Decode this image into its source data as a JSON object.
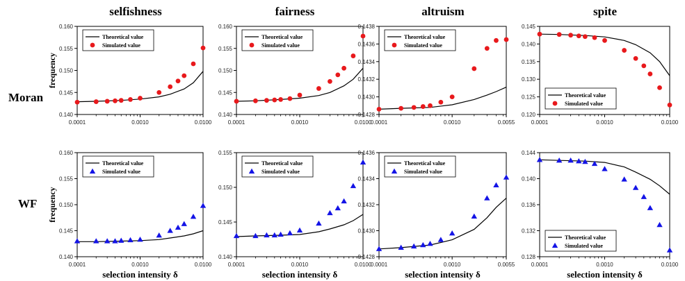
{
  "figure": {
    "column_titles": [
      "selfishness",
      "fairness",
      "altruism",
      "spite"
    ],
    "row_labels": [
      "Moran",
      "WF"
    ],
    "ylabel": "frequency",
    "xlabel": "selection intensity δ",
    "legend": {
      "theoretical": "Theoretical value",
      "simulated": "Simulated value"
    },
    "colors": {
      "moran_marker": "#e8191c",
      "wf_marker": "#1414e6",
      "line": "#000000"
    }
  },
  "chart_data": [
    {
      "type": "line",
      "row": "Moran",
      "column": "selfishness",
      "xscale": "log",
      "xlim": [
        0.0001,
        0.01
      ],
      "ylim": [
        0.14,
        0.16
      ],
      "xticks": [
        "0.0001",
        "0.0010",
        "0.0100"
      ],
      "yticks": [
        "0.140",
        "0.145",
        "0.150",
        "0.155",
        "0.160"
      ],
      "legend_position": "top-left",
      "marker": "circle",
      "series": [
        {
          "name": "Theoretical value",
          "x": [
            0.0001,
            0.0002,
            0.0005,
            0.001,
            0.002,
            0.003,
            0.005,
            0.007,
            0.01
          ],
          "y": [
            0.1429,
            0.143,
            0.1432,
            0.1435,
            0.144,
            0.1446,
            0.1458,
            0.1472,
            0.1498
          ]
        },
        {
          "name": "Simulated value",
          "x": [
            0.0001,
            0.0002,
            0.0003,
            0.0004,
            0.0005,
            0.0007,
            0.001,
            0.002,
            0.003,
            0.004,
            0.005,
            0.007,
            0.01
          ],
          "y": [
            0.1428,
            0.1429,
            0.143,
            0.1431,
            0.1432,
            0.1434,
            0.1437,
            0.145,
            0.1463,
            0.1476,
            0.1488,
            0.1515,
            0.1551
          ]
        }
      ]
    },
    {
      "type": "line",
      "row": "Moran",
      "column": "fairness",
      "xscale": "log",
      "xlim": [
        0.0001,
        0.01
      ],
      "ylim": [
        0.14,
        0.16
      ],
      "xticks": [
        "0.0001",
        "0.0010",
        "0.0100"
      ],
      "yticks": [
        "0.140",
        "0.145",
        "0.150",
        "0.155",
        "0.160"
      ],
      "legend_position": "top-left",
      "marker": "circle",
      "series": [
        {
          "name": "Theoretical value",
          "x": [
            0.0001,
            0.0002,
            0.0005,
            0.001,
            0.002,
            0.003,
            0.005,
            0.007,
            0.01
          ],
          "y": [
            0.143,
            0.1431,
            0.1434,
            0.1437,
            0.1443,
            0.145,
            0.1465,
            0.148,
            0.1505
          ]
        },
        {
          "name": "Simulated value",
          "x": [
            0.0001,
            0.0002,
            0.0003,
            0.0004,
            0.0005,
            0.0007,
            0.001,
            0.002,
            0.003,
            0.004,
            0.005,
            0.007,
            0.01
          ],
          "y": [
            0.143,
            0.1431,
            0.1432,
            0.1433,
            0.1434,
            0.1436,
            0.1444,
            0.1459,
            0.1475,
            0.149,
            0.1505,
            0.1533,
            0.1578
          ]
        }
      ]
    },
    {
      "type": "line",
      "row": "Moran",
      "column": "altruism",
      "xscale": "log",
      "xlim": [
        0.0001,
        0.0055
      ],
      "ylim": [
        0.1428,
        0.1438
      ],
      "xticks": [
        "0.0001",
        "0.0010",
        "0.0055"
      ],
      "yticks": [
        "0.1428",
        "0.1430",
        "0.1432",
        "0.1434",
        "0.1436",
        "0.1438"
      ],
      "legend_position": "top-left",
      "marker": "circle",
      "series": [
        {
          "name": "Theoretical value",
          "x": [
            0.0001,
            0.0002,
            0.0005,
            0.001,
            0.002,
            0.003,
            0.004,
            0.0055
          ],
          "y": [
            0.14286,
            0.14287,
            0.14288,
            0.14291,
            0.14297,
            0.14302,
            0.14306,
            0.14311
          ]
        },
        {
          "name": "Simulated value",
          "x": [
            0.0001,
            0.0002,
            0.0003,
            0.0004,
            0.0005,
            0.0007,
            0.001,
            0.002,
            0.003,
            0.004,
            0.0055
          ],
          "y": [
            0.14286,
            0.14287,
            0.14288,
            0.14289,
            0.1429,
            0.14294,
            0.143,
            0.14332,
            0.14355,
            0.14364,
            0.14365
          ]
        }
      ]
    },
    {
      "type": "line",
      "row": "Moran",
      "column": "spite",
      "xscale": "log",
      "xlim": [
        0.0001,
        0.01
      ],
      "ylim": [
        0.12,
        0.145
      ],
      "xticks": [
        "0.0001",
        "0.0010",
        "0.0100"
      ],
      "yticks": [
        "0.120",
        "0.125",
        "0.130",
        "0.135",
        "0.140",
        "0.145"
      ],
      "legend_position": "bottom-left",
      "marker": "circle",
      "series": [
        {
          "name": "Theoretical value",
          "x": [
            0.0001,
            0.0002,
            0.0005,
            0.001,
            0.002,
            0.003,
            0.005,
            0.007,
            0.01
          ],
          "y": [
            0.1428,
            0.1427,
            0.1424,
            0.142,
            0.141,
            0.1398,
            0.1375,
            0.135,
            0.131
          ]
        },
        {
          "name": "Simulated value",
          "x": [
            0.0001,
            0.0002,
            0.0003,
            0.0004,
            0.0005,
            0.0007,
            0.001,
            0.002,
            0.003,
            0.004,
            0.005,
            0.007,
            0.01
          ],
          "y": [
            0.1428,
            0.1427,
            0.1425,
            0.1423,
            0.1421,
            0.1418,
            0.141,
            0.1382,
            0.1359,
            0.1338,
            0.1315,
            0.1276,
            0.1227
          ]
        }
      ]
    },
    {
      "type": "line",
      "row": "WF",
      "column": "selfishness",
      "xscale": "log",
      "xlim": [
        0.0001,
        0.01
      ],
      "ylim": [
        0.14,
        0.16
      ],
      "xticks": [
        "0.0001",
        "0.0010",
        "0.0100"
      ],
      "yticks": [
        "0.140",
        "0.145",
        "0.150",
        "0.155",
        "0.160"
      ],
      "legend_position": "top-left",
      "marker": "triangle",
      "series": [
        {
          "name": "Theoretical value",
          "x": [
            0.0001,
            0.0002,
            0.0005,
            0.001,
            0.002,
            0.003,
            0.005,
            0.007,
            0.01
          ],
          "y": [
            0.1429,
            0.1429,
            0.143,
            0.1431,
            0.1433,
            0.1436,
            0.144,
            0.1444,
            0.145
          ]
        },
        {
          "name": "Simulated value",
          "x": [
            0.0001,
            0.0002,
            0.0003,
            0.0004,
            0.0005,
            0.0007,
            0.001,
            0.002,
            0.003,
            0.004,
            0.005,
            0.007,
            0.01
          ],
          "y": [
            0.143,
            0.143,
            0.143,
            0.143,
            0.1431,
            0.1432,
            0.1433,
            0.1441,
            0.145,
            0.1456,
            0.1463,
            0.1477,
            0.1498
          ]
        }
      ]
    },
    {
      "type": "line",
      "row": "WF",
      "column": "fairness",
      "xscale": "log",
      "xlim": [
        0.0001,
        0.01
      ],
      "ylim": [
        0.14,
        0.155
      ],
      "xticks": [
        "0.0001",
        "0.0010",
        "0.0100"
      ],
      "yticks": [
        "0.140",
        "0.145",
        "0.150",
        "0.155"
      ],
      "legend_position": "top-left",
      "marker": "triangle",
      "series": [
        {
          "name": "Theoretical value",
          "x": [
            0.0001,
            0.0002,
            0.0005,
            0.001,
            0.002,
            0.003,
            0.005,
            0.007,
            0.01
          ],
          "y": [
            0.1429,
            0.143,
            0.1431,
            0.1432,
            0.1436,
            0.144,
            0.1446,
            0.1452,
            0.1461
          ]
        },
        {
          "name": "Simulated value",
          "x": [
            0.0001,
            0.0002,
            0.0003,
            0.0004,
            0.0005,
            0.0007,
            0.001,
            0.002,
            0.003,
            0.004,
            0.005,
            0.007,
            0.01
          ],
          "y": [
            0.143,
            0.143,
            0.1431,
            0.1431,
            0.1432,
            0.1434,
            0.1438,
            0.1448,
            0.1463,
            0.147,
            0.148,
            0.1502,
            0.1536
          ]
        }
      ]
    },
    {
      "type": "line",
      "row": "WF",
      "column": "altruism",
      "xscale": "log",
      "xlim": [
        0.0001,
        0.0055
      ],
      "ylim": [
        0.1428,
        0.1436
      ],
      "xticks": [
        "0.0001",
        "0.0010",
        "0.0055"
      ],
      "yticks": [
        "0.1428",
        "0.1430",
        "0.1432",
        "0.1434",
        "0.1436"
      ],
      "legend_position": "top-left",
      "marker": "triangle",
      "series": [
        {
          "name": "Theoretical value",
          "x": [
            0.0001,
            0.0002,
            0.0005,
            0.001,
            0.002,
            0.003,
            0.004,
            0.0055
          ],
          "y": [
            0.14286,
            0.14287,
            0.14289,
            0.14293,
            0.14301,
            0.1431,
            0.14318,
            0.14325
          ]
        },
        {
          "name": "Simulated value",
          "x": [
            0.0001,
            0.0002,
            0.0003,
            0.0004,
            0.0005,
            0.0007,
            0.001,
            0.002,
            0.003,
            0.004,
            0.0055
          ],
          "y": [
            0.14286,
            0.14287,
            0.14288,
            0.14289,
            0.1429,
            0.14293,
            0.14298,
            0.14311,
            0.14325,
            0.14335,
            0.14341
          ]
        }
      ]
    },
    {
      "type": "line",
      "row": "WF",
      "column": "spite",
      "xscale": "log",
      "xlim": [
        0.0001,
        0.01
      ],
      "ylim": [
        0.128,
        0.144
      ],
      "xticks": [
        "0.0001",
        "0.0010",
        "0.0100"
      ],
      "yticks": [
        "0.128",
        "0.132",
        "0.136",
        "0.140",
        "0.144"
      ],
      "legend_position": "bottom-left",
      "marker": "triangle",
      "series": [
        {
          "name": "Theoretical value",
          "x": [
            0.0001,
            0.0002,
            0.0005,
            0.001,
            0.002,
            0.003,
            0.005,
            0.007,
            0.01
          ],
          "y": [
            0.1429,
            0.1428,
            0.1427,
            0.1425,
            0.1418,
            0.141,
            0.1399,
            0.1389,
            0.1376
          ]
        },
        {
          "name": "Simulated value",
          "x": [
            0.0001,
            0.0002,
            0.0003,
            0.0004,
            0.0005,
            0.0007,
            0.001,
            0.002,
            0.003,
            0.004,
            0.005,
            0.007,
            0.01
          ],
          "y": [
            0.1429,
            0.1428,
            0.1428,
            0.1427,
            0.1426,
            0.1423,
            0.1415,
            0.1399,
            0.1386,
            0.1372,
            0.1355,
            0.1329,
            0.129
          ]
        }
      ]
    }
  ]
}
